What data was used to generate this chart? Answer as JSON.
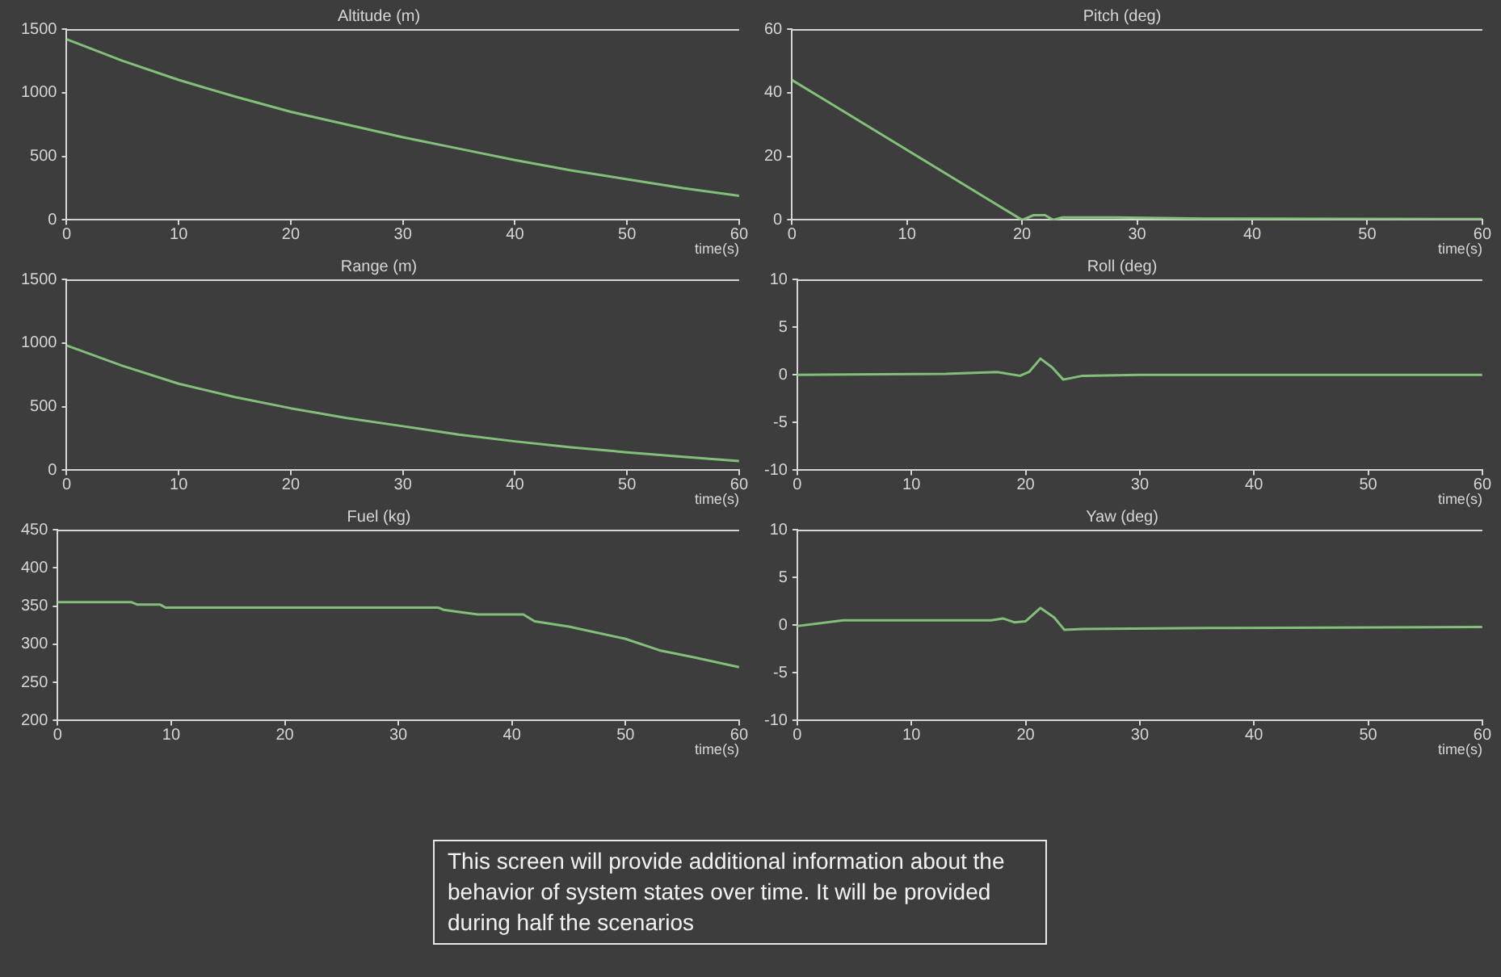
{
  "chart_data": [
    {
      "type": "line",
      "title": "Altitude (m)",
      "xlabel": "time(s)",
      "xlim": [
        0,
        60
      ],
      "xticks": [
        0,
        10,
        20,
        30,
        40,
        50,
        60
      ],
      "ylim": [
        0,
        1500
      ],
      "yticks": [
        0,
        500,
        1000,
        1500
      ],
      "grid": false,
      "legend": false,
      "marker": "none",
      "series": [
        {
          "color": "#82c07a",
          "x": [
            0,
            5,
            10,
            15,
            20,
            25,
            30,
            35,
            40,
            45,
            50,
            55,
            60
          ],
          "values": [
            1420,
            1250,
            1100,
            970,
            850,
            750,
            650,
            560,
            470,
            390,
            320,
            250,
            190
          ]
        }
      ]
    },
    {
      "type": "line",
      "title": "Pitch (deg)",
      "xlabel": "time(s)",
      "xlim": [
        0,
        60
      ],
      "xticks": [
        0,
        10,
        20,
        30,
        40,
        50,
        60
      ],
      "ylim": [
        0,
        60
      ],
      "yticks": [
        0,
        20,
        40,
        60
      ],
      "grid": false,
      "legend": false,
      "marker": "none",
      "series": [
        {
          "color": "#82c07a",
          "x": [
            0,
            20,
            21,
            22,
            22.7,
            23.5,
            28,
            36,
            60
          ],
          "values": [
            44,
            0,
            1.5,
            1.5,
            0,
            0.8,
            0.8,
            0.4,
            0.3
          ]
        }
      ]
    },
    {
      "type": "line",
      "title": "Range (m)",
      "xlabel": "time(s)",
      "xlim": [
        0,
        60
      ],
      "xticks": [
        0,
        10,
        20,
        30,
        40,
        50,
        60
      ],
      "ylim": [
        0,
        1500
      ],
      "yticks": [
        0,
        500,
        1000,
        1500
      ],
      "grid": false,
      "legend": false,
      "marker": "none",
      "series": [
        {
          "color": "#82c07a",
          "x": [
            0,
            5,
            10,
            15,
            20,
            25,
            30,
            35,
            40,
            45,
            50,
            55,
            60
          ],
          "values": [
            980,
            820,
            680,
            575,
            487,
            410,
            346,
            280,
            227,
            180,
            141,
            105,
            73
          ]
        }
      ]
    },
    {
      "type": "line",
      "title": "Roll (deg)",
      "xlabel": "time(s)",
      "xlim": [
        0,
        60
      ],
      "xticks": [
        0,
        10,
        20,
        30,
        40,
        50,
        60
      ],
      "ylim": [
        -10,
        10
      ],
      "yticks": [
        -10,
        -5,
        0,
        5,
        10
      ],
      "grid": false,
      "legend": false,
      "marker": "none",
      "series": [
        {
          "color": "#82c07a",
          "x": [
            0,
            13,
            17.5,
            19.5,
            20.3,
            21.3,
            22.3,
            23.3,
            25,
            30,
            60
          ],
          "values": [
            0,
            0.1,
            0.3,
            -0.1,
            0.3,
            1.7,
            0.8,
            -0.5,
            -0.1,
            0,
            0
          ]
        }
      ]
    },
    {
      "type": "line",
      "title": "Fuel (kg)",
      "xlabel": "time(s)",
      "xlim": [
        0,
        60
      ],
      "xticks": [
        0,
        10,
        20,
        30,
        40,
        50,
        60
      ],
      "ylim": [
        200,
        450
      ],
      "yticks": [
        200,
        250,
        300,
        350,
        400,
        450
      ],
      "grid": false,
      "legend": false,
      "marker": "none",
      "series": [
        {
          "color": "#82c07a",
          "x": [
            0,
            6.5,
            7,
            9,
            9.5,
            33.5,
            34,
            35,
            37,
            41,
            42,
            45,
            50,
            53,
            56,
            60
          ],
          "values": [
            355,
            355,
            352,
            352,
            348,
            348,
            345,
            343,
            339,
            339,
            330,
            323,
            307,
            292,
            283,
            270
          ]
        }
      ]
    },
    {
      "type": "line",
      "title": "Yaw (deg)",
      "xlabel": "time(s)",
      "xlim": [
        0,
        60
      ],
      "xticks": [
        0,
        10,
        20,
        30,
        40,
        50,
        60
      ],
      "ylim": [
        -10,
        10
      ],
      "yticks": [
        -10,
        -5,
        0,
        5,
        10
      ],
      "grid": false,
      "legend": false,
      "marker": "none",
      "series": [
        {
          "color": "#82c07a",
          "x": [
            0,
            4,
            17,
            18,
            19,
            20,
            21.3,
            22.5,
            23.4,
            25,
            36,
            60
          ],
          "values": [
            -0.1,
            0.5,
            0.5,
            0.7,
            0.3,
            0.4,
            1.8,
            0.8,
            -0.5,
            -0.4,
            -0.3,
            -0.2
          ]
        }
      ]
    },
    {
      "type": "other",
      "annotations": [
        "This screen will provide additional information about the behavior of system states over time. It will be provided during half the scenarios"
      ]
    }
  ]
}
